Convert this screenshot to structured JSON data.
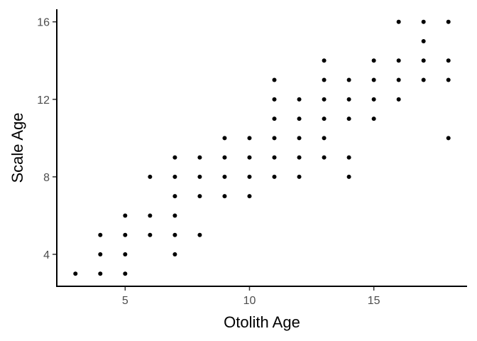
{
  "chart_data": {
    "type": "scatter",
    "title": "",
    "xlabel": "Otolith Age",
    "ylabel": "Scale Age",
    "xlim": [
      2.25,
      18.75
    ],
    "ylim": [
      2.35,
      16.65
    ],
    "xticks": [
      5,
      10,
      15
    ],
    "yticks": [
      4,
      8,
      12,
      16
    ],
    "grid": false,
    "legend": "none",
    "point_color": "#000000",
    "points": [
      {
        "x": 3,
        "y": 3
      },
      {
        "x": 4,
        "y": 3
      },
      {
        "x": 4,
        "y": 4
      },
      {
        "x": 4,
        "y": 5
      },
      {
        "x": 5,
        "y": 3
      },
      {
        "x": 5,
        "y": 4
      },
      {
        "x": 5,
        "y": 5
      },
      {
        "x": 5,
        "y": 6
      },
      {
        "x": 6,
        "y": 5
      },
      {
        "x": 6,
        "y": 6
      },
      {
        "x": 6,
        "y": 8
      },
      {
        "x": 7,
        "y": 4
      },
      {
        "x": 7,
        "y": 5
      },
      {
        "x": 7,
        "y": 6
      },
      {
        "x": 7,
        "y": 7
      },
      {
        "x": 7,
        "y": 8
      },
      {
        "x": 7,
        "y": 9
      },
      {
        "x": 8,
        "y": 5
      },
      {
        "x": 8,
        "y": 7
      },
      {
        "x": 8,
        "y": 8
      },
      {
        "x": 8,
        "y": 9
      },
      {
        "x": 9,
        "y": 7
      },
      {
        "x": 9,
        "y": 8
      },
      {
        "x": 9,
        "y": 9
      },
      {
        "x": 9,
        "y": 10
      },
      {
        "x": 10,
        "y": 7
      },
      {
        "x": 10,
        "y": 8
      },
      {
        "x": 10,
        "y": 9
      },
      {
        "x": 10,
        "y": 10
      },
      {
        "x": 11,
        "y": 8
      },
      {
        "x": 11,
        "y": 9
      },
      {
        "x": 11,
        "y": 10
      },
      {
        "x": 11,
        "y": 11
      },
      {
        "x": 11,
        "y": 12
      },
      {
        "x": 11,
        "y": 13
      },
      {
        "x": 12,
        "y": 8
      },
      {
        "x": 12,
        "y": 9
      },
      {
        "x": 12,
        "y": 10
      },
      {
        "x": 12,
        "y": 11
      },
      {
        "x": 12,
        "y": 12
      },
      {
        "x": 13,
        "y": 9
      },
      {
        "x": 13,
        "y": 10
      },
      {
        "x": 13,
        "y": 11
      },
      {
        "x": 13,
        "y": 12
      },
      {
        "x": 13,
        "y": 13
      },
      {
        "x": 13,
        "y": 14
      },
      {
        "x": 14,
        "y": 8
      },
      {
        "x": 14,
        "y": 9
      },
      {
        "x": 14,
        "y": 11
      },
      {
        "x": 14,
        "y": 12
      },
      {
        "x": 14,
        "y": 13
      },
      {
        "x": 15,
        "y": 11
      },
      {
        "x": 15,
        "y": 12
      },
      {
        "x": 15,
        "y": 13
      },
      {
        "x": 15,
        "y": 14
      },
      {
        "x": 16,
        "y": 12
      },
      {
        "x": 16,
        "y": 13
      },
      {
        "x": 16,
        "y": 14
      },
      {
        "x": 16,
        "y": 16
      },
      {
        "x": 17,
        "y": 13
      },
      {
        "x": 17,
        "y": 14
      },
      {
        "x": 17,
        "y": 15
      },
      {
        "x": 17,
        "y": 16
      },
      {
        "x": 18,
        "y": 10
      },
      {
        "x": 18,
        "y": 13
      },
      {
        "x": 18,
        "y": 14
      },
      {
        "x": 18,
        "y": 16
      }
    ]
  }
}
